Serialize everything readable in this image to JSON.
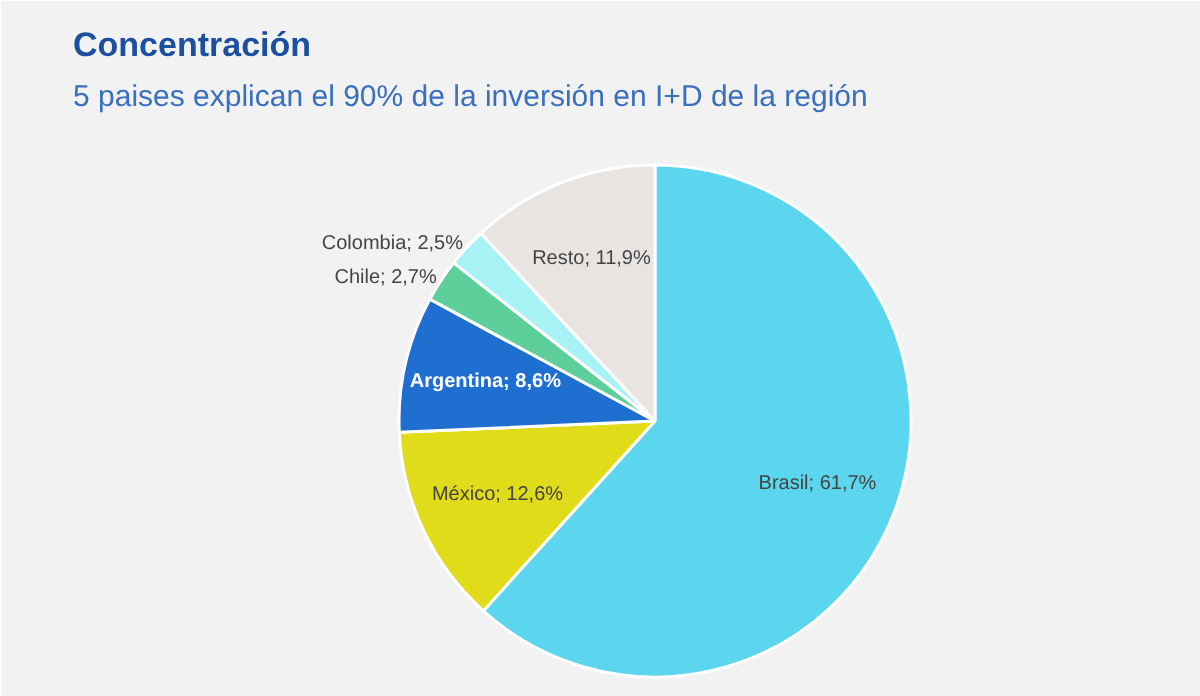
{
  "chart_data": {
    "type": "pie",
    "title": "Concentración",
    "subtitle": "5 paises explican el 90% de la inversión en I+D de la región",
    "categories": [
      "Brasil",
      "México",
      "Argentina",
      "Chile",
      "Colombia",
      "Resto"
    ],
    "values": [
      61.7,
      12.6,
      8.6,
      2.7,
      2.5,
      11.9
    ],
    "value_labels": [
      "61,7%",
      "12,6%",
      "8,6%",
      "2,7%",
      "2,5%",
      "11,9%"
    ],
    "colors": [
      "#5bd6ee",
      "#e0dc1a",
      "#1f6fd0",
      "#5ccf9a",
      "#a6f2f4",
      "#e8e4e2"
    ]
  }
}
